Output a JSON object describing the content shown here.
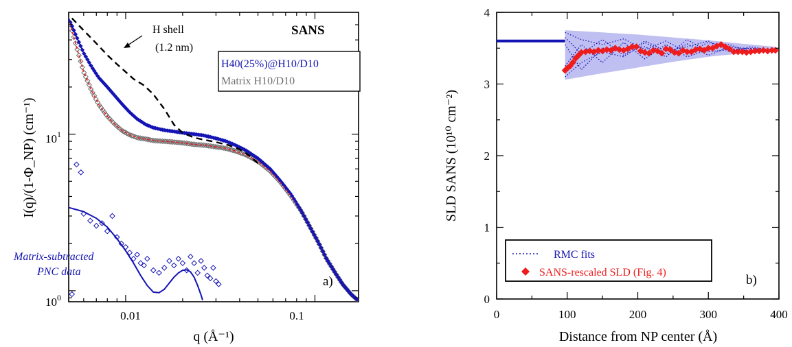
{
  "chart_data": [
    {
      "panel_label": "a)",
      "type": "scatter",
      "xscale": "log",
      "yscale": "log",
      "xlim": [
        0.005,
        0.17
      ],
      "ylim": [
        0.85,
        60
      ],
      "xlabel": "q (Å⁻¹)",
      "ylabel": "I(q)/(1-Φ_NP) (cm⁻¹)",
      "x_tick_labels": [
        {
          "value": 0.01,
          "label": "0.01"
        },
        {
          "value": 0.1,
          "label": "0.1"
        }
      ],
      "y_tick_labels": [
        {
          "value": 1,
          "base": "10",
          "exp": "0"
        },
        {
          "value": 10,
          "base": "10",
          "exp": "1"
        }
      ],
      "title_annotation": "SANS",
      "shell_annotation": {
        "line1": "H shell",
        "line2": "(1.2 nm)"
      },
      "subtracted_annotation": {
        "line1": "Matrix-subtracted",
        "line2": "PNC data"
      },
      "legend": {
        "position": "top-right",
        "entries": [
          "H40(25%)@H10/D10",
          "Matrix H10/D10"
        ]
      },
      "series": [
        {
          "name": "H40(25%)@H10/D10",
          "style": "filled-diamonds-with-fit",
          "color": "#1414b4",
          "points": [
            [
              0.005,
              55
            ],
            [
              0.0055,
              42
            ],
            [
              0.006,
              33
            ],
            [
              0.0066,
              27
            ],
            [
              0.0072,
              23
            ],
            [
              0.008,
              20
            ],
            [
              0.0088,
              17.5
            ],
            [
              0.0096,
              15.5
            ],
            [
              0.0105,
              13.8
            ],
            [
              0.0115,
              12.5
            ],
            [
              0.0128,
              11.5
            ],
            [
              0.014,
              11
            ],
            [
              0.016,
              10.6
            ],
            [
              0.018,
              10.4
            ],
            [
              0.02,
              10.2
            ],
            [
              0.023,
              10
            ],
            [
              0.026,
              9.8
            ],
            [
              0.03,
              9.4
            ],
            [
              0.034,
              9
            ],
            [
              0.038,
              8.5
            ],
            [
              0.043,
              7.9
            ],
            [
              0.05,
              7
            ],
            [
              0.058,
              6
            ],
            [
              0.066,
              5
            ],
            [
              0.075,
              4.1
            ],
            [
              0.085,
              3.2
            ],
            [
              0.095,
              2.5
            ],
            [
              0.105,
              2
            ],
            [
              0.115,
              1.6
            ],
            [
              0.128,
              1.3
            ],
            [
              0.14,
              1.1
            ],
            [
              0.155,
              0.95
            ],
            [
              0.168,
              0.87
            ]
          ]
        },
        {
          "name": "Matrix H10/D10",
          "style": "open-diamonds-with-red-dashed-fit",
          "color": "#6e6e6e",
          "fit_color": "#e02020",
          "points": [
            [
              0.005,
              55
            ],
            [
              0.0055,
              36
            ],
            [
              0.006,
              25
            ],
            [
              0.0066,
              19
            ],
            [
              0.0072,
              15.5
            ],
            [
              0.008,
              13
            ],
            [
              0.0088,
              11.5
            ],
            [
              0.0096,
              10.5
            ],
            [
              0.0105,
              9.9
            ],
            [
              0.0115,
              9.5
            ],
            [
              0.0128,
              9.3
            ],
            [
              0.014,
              9.1
            ],
            [
              0.016,
              9
            ],
            [
              0.018,
              8.9
            ],
            [
              0.02,
              8.8
            ],
            [
              0.023,
              8.6
            ],
            [
              0.026,
              8.5
            ],
            [
              0.03,
              8.3
            ],
            [
              0.034,
              8.1
            ],
            [
              0.038,
              7.8
            ],
            [
              0.043,
              7.4
            ],
            [
              0.05,
              6.7
            ],
            [
              0.058,
              5.8
            ],
            [
              0.066,
              4.9
            ],
            [
              0.075,
              4
            ],
            [
              0.085,
              3.2
            ],
            [
              0.095,
              2.5
            ],
            [
              0.105,
              2
            ],
            [
              0.115,
              1.6
            ],
            [
              0.128,
              1.3
            ],
            [
              0.14,
              1.1
            ],
            [
              0.155,
              0.95
            ],
            [
              0.168,
              0.87
            ]
          ]
        },
        {
          "name": "H shell model",
          "style": "black-dashed",
          "color": "#000000",
          "points": [
            [
              0.0052,
              55
            ],
            [
              0.006,
              46
            ],
            [
              0.007,
              38
            ],
            [
              0.008,
              32
            ],
            [
              0.009,
              28
            ],
            [
              0.01,
              25
            ],
            [
              0.011,
              22.5
            ],
            [
              0.0125,
              20.5
            ],
            [
              0.014,
              18
            ],
            [
              0.016,
              14.5
            ],
            [
              0.018,
              11.5
            ],
            [
              0.02,
              10.2
            ],
            [
              0.023,
              9.5
            ],
            [
              0.026,
              9.2
            ],
            [
              0.03,
              8.9
            ],
            [
              0.035,
              8.5
            ],
            [
              0.04,
              8
            ],
            [
              0.045,
              7.3
            ],
            [
              0.05,
              6.5
            ]
          ]
        },
        {
          "name": "Matrix-subtracted PNC data",
          "style": "open-diamonds-with-fit",
          "color": "#1414b4",
          "points": [
            [
              0.0055,
              6.4
            ],
            [
              0.0058,
              5.7
            ],
            [
              0.006,
              3.1
            ],
            [
              0.0065,
              2.8
            ],
            [
              0.007,
              2.6
            ],
            [
              0.0075,
              2.7
            ],
            [
              0.008,
              2.4
            ],
            [
              0.0085,
              3.0
            ],
            [
              0.009,
              2.2
            ],
            [
              0.0095,
              2.0
            ],
            [
              0.01,
              1.9
            ],
            [
              0.0105,
              1.75
            ],
            [
              0.011,
              1.6
            ],
            [
              0.0115,
              1.7
            ],
            [
              0.012,
              1.5
            ],
            [
              0.0125,
              1.45
            ],
            [
              0.013,
              1.6
            ],
            [
              0.014,
              1.35
            ],
            [
              0.015,
              1.3
            ],
            [
              0.016,
              1.4
            ],
            [
              0.017,
              1.55
            ],
            [
              0.018,
              1.45
            ],
            [
              0.019,
              1.6
            ],
            [
              0.02,
              1.5
            ],
            [
              0.021,
              1.35
            ],
            [
              0.022,
              1.65
            ],
            [
              0.023,
              1.5
            ],
            [
              0.024,
              1.3
            ],
            [
              0.025,
              1.55
            ],
            [
              0.026,
              1.4
            ],
            [
              0.027,
              1.25
            ],
            [
              0.028,
              1.2
            ],
            [
              0.029,
              1.4
            ],
            [
              0.03,
              1.15
            ],
            [
              0.0052,
              0.95
            ],
            [
              0.031,
              1.1
            ]
          ],
          "fit": [
            [
              0.005,
              3.4
            ],
            [
              0.006,
              3.2
            ],
            [
              0.007,
              2.9
            ],
            [
              0.008,
              2.55
            ],
            [
              0.009,
              2.15
            ],
            [
              0.01,
              1.8
            ],
            [
              0.011,
              1.5
            ],
            [
              0.012,
              1.25
            ],
            [
              0.013,
              1.08
            ],
            [
              0.014,
              0.98
            ],
            [
              0.015,
              0.97
            ],
            [
              0.016,
              1.02
            ],
            [
              0.017,
              1.12
            ],
            [
              0.018,
              1.22
            ],
            [
              0.019,
              1.3
            ],
            [
              0.02,
              1.35
            ],
            [
              0.021,
              1.36
            ],
            [
              0.022,
              1.32
            ],
            [
              0.023,
              1.22
            ],
            [
              0.024,
              1.08
            ],
            [
              0.025,
              0.94
            ],
            [
              0.0255,
              0.87
            ]
          ]
        }
      ]
    },
    {
      "panel_label": "b)",
      "type": "line",
      "xlim": [
        0,
        400
      ],
      "ylim": [
        0,
        4
      ],
      "xlabel": "Distance from NP center (Å)",
      "ylabel": "SLD SANS (10¹⁰ cm⁻²)",
      "x_ticks": [
        0,
        100,
        200,
        300,
        400
      ],
      "y_ticks": [
        0,
        1,
        2,
        3,
        4
      ],
      "legend": {
        "position": "bottom-left",
        "entries": [
          "RMC fits",
          "SANS-rescaled SLD (Fig. 4)"
        ]
      },
      "core_line": {
        "x": [
          0,
          97
        ],
        "y": 3.6,
        "color": "#1414b4"
      },
      "band": {
        "color": "#b4b4f0",
        "x": [
          97,
          150,
          200,
          250,
          300,
          350,
          395
        ],
        "upper": [
          3.75,
          3.72,
          3.69,
          3.65,
          3.61,
          3.56,
          3.52
        ],
        "lower": [
          3.06,
          3.15,
          3.23,
          3.31,
          3.38,
          3.43,
          3.45
        ]
      },
      "series": [
        {
          "name": "RMC fits",
          "color": "#1414b4",
          "style": "dotted-lines",
          "traces": [
            {
              "x": [
                97,
                120,
                150,
                180,
                210,
                240,
                270,
                300,
                330,
                360,
                395
              ],
              "y": [
                3.72,
                3.62,
                3.55,
                3.63,
                3.48,
                3.6,
                3.44,
                3.58,
                3.5,
                3.46,
                3.48
              ]
            },
            {
              "x": [
                97,
                120,
                150,
                180,
                210,
                240,
                270,
                300,
                330,
                360,
                395
              ],
              "y": [
                3.1,
                3.3,
                3.45,
                3.38,
                3.58,
                3.42,
                3.56,
                3.4,
                3.52,
                3.49,
                3.47
              ]
            },
            {
              "x": [
                97,
                120,
                150,
                180,
                210,
                240,
                270,
                300,
                330,
                360,
                395
              ],
              "y": [
                3.65,
                3.42,
                3.62,
                3.4,
                3.6,
                3.46,
                3.52,
                3.6,
                3.45,
                3.52,
                3.46
              ]
            },
            {
              "x": [
                97,
                120,
                150,
                180,
                210,
                240,
                270,
                300,
                330,
                360,
                395
              ],
              "y": [
                3.25,
                3.55,
                3.3,
                3.58,
                3.35,
                3.55,
                3.38,
                3.48,
                3.55,
                3.44,
                3.49
              ]
            },
            {
              "x": [
                97,
                120,
                150,
                180,
                210,
                240,
                270,
                300,
                330,
                360,
                395
              ],
              "y": [
                3.55,
                3.2,
                3.5,
                3.48,
                3.52,
                3.38,
                3.62,
                3.45,
                3.48,
                3.5,
                3.47
              ]
            }
          ]
        },
        {
          "name": "SANS-rescaled SLD (Fig. 4)",
          "color": "#ee1c1c",
          "style": "filled-diamonds",
          "x": [
            97,
            100,
            104,
            108,
            112,
            116,
            120,
            126,
            132,
            138,
            144,
            150,
            156,
            162,
            168,
            174,
            180,
            186,
            192,
            198,
            204,
            210,
            216,
            222,
            228,
            234,
            240,
            246,
            252,
            258,
            264,
            270,
            276,
            282,
            288,
            294,
            300,
            306,
            312,
            318,
            324,
            330,
            336,
            342,
            348,
            354,
            360,
            366,
            372,
            378,
            384,
            390,
            395
          ],
          "y": [
            3.19,
            3.22,
            3.25,
            3.3,
            3.36,
            3.4,
            3.44,
            3.45,
            3.46,
            3.45,
            3.47,
            3.46,
            3.48,
            3.47,
            3.5,
            3.48,
            3.47,
            3.49,
            3.52,
            3.52,
            3.46,
            3.44,
            3.43,
            3.47,
            3.46,
            3.43,
            3.49,
            3.48,
            3.44,
            3.43,
            3.47,
            3.45,
            3.45,
            3.48,
            3.49,
            3.47,
            3.5,
            3.5,
            3.53,
            3.55,
            3.52,
            3.49,
            3.45,
            3.45,
            3.45,
            3.44,
            3.45,
            3.46,
            3.46,
            3.47,
            3.46,
            3.47,
            3.47
          ]
        }
      ]
    }
  ]
}
